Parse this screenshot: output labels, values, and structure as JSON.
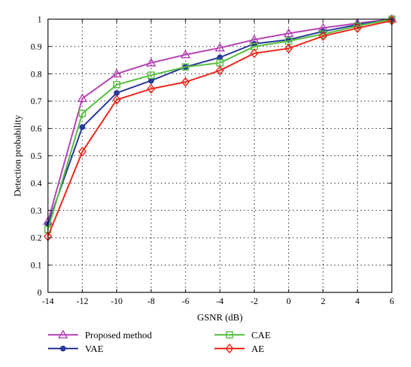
{
  "chart_data": {
    "type": "line",
    "title": "",
    "xlabel": "GSNR (dB)",
    "ylabel": "Detection probability",
    "x": [
      -14,
      -12,
      -10,
      -8,
      -6,
      -4,
      -2,
      0,
      2,
      4,
      6
    ],
    "xlim": [
      -14,
      6
    ],
    "ylim": [
      0,
      1
    ],
    "xticks": [
      "-14",
      "-12",
      "-10",
      "-8",
      "-6",
      "-4",
      "-2",
      "0",
      "2",
      "4",
      "6"
    ],
    "yticks": [
      "0",
      "0.1",
      "0.2",
      "0.3",
      "0.4",
      "0.5",
      "0.6",
      "0.7",
      "0.8",
      "0.9",
      "1"
    ],
    "grid": true,
    "legend_position": "bottom",
    "series": [
      {
        "name": "Proposed method",
        "color": "#b845b8",
        "marker": "triangle",
        "values": [
          0.26,
          0.71,
          0.8,
          0.84,
          0.87,
          0.895,
          0.925,
          0.948,
          0.968,
          0.985,
          1.0
        ]
      },
      {
        "name": "VAE",
        "color": "#2b3a9a",
        "marker": "dot",
        "values": [
          0.25,
          0.605,
          0.73,
          0.775,
          0.825,
          0.86,
          0.91,
          0.925,
          0.955,
          0.98,
          1.0
        ]
      },
      {
        "name": "CAE",
        "color": "#55c040",
        "marker": "square",
        "values": [
          0.23,
          0.655,
          0.76,
          0.795,
          0.825,
          0.84,
          0.9,
          0.92,
          0.945,
          0.975,
          1.0
        ]
      },
      {
        "name": "AE",
        "color": "#ee2a1e",
        "marker": "diamond",
        "values": [
          0.205,
          0.515,
          0.705,
          0.745,
          0.77,
          0.812,
          0.875,
          0.893,
          0.938,
          0.967,
          0.995
        ]
      }
    ]
  }
}
